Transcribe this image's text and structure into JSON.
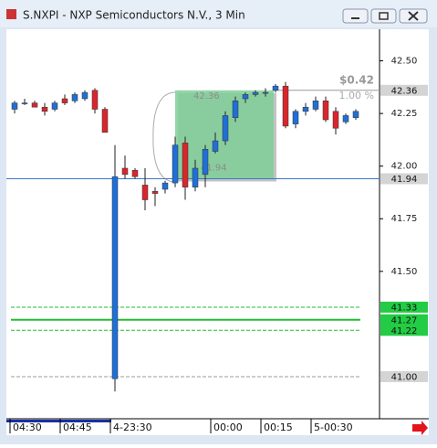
{
  "chart_data": {
    "type": "candlestick",
    "title": "S.NXPI - NXP Semiconductors N.V., 3 Min",
    "x": [
      "04:30",
      null,
      null,
      null,
      null,
      "04:45",
      null,
      null,
      null,
      null,
      "4-23:30",
      null,
      null,
      null,
      null,
      null,
      null,
      null,
      null,
      null,
      "00:00",
      null,
      null,
      null,
      null,
      "00:15",
      null,
      null,
      null,
      null,
      "5-00:30",
      null,
      null,
      null,
      null
    ],
    "open": [
      42.27,
      42.3,
      42.3,
      42.28,
      42.27,
      42.32,
      42.31,
      42.32,
      42.36,
      42.27,
      40.99,
      41.99,
      41.98,
      41.91,
      41.88,
      41.89,
      41.92,
      42.11,
      41.9,
      41.96,
      42.07,
      42.12,
      42.23,
      42.32,
      42.34,
      42.35,
      42.36,
      42.38,
      42.2,
      42.26,
      42.27,
      42.31,
      42.26,
      42.21,
      42.23
    ],
    "high": [
      42.31,
      42.32,
      42.31,
      42.3,
      42.31,
      42.34,
      42.35,
      42.36,
      42.37,
      42.28,
      42.1,
      42.05,
      41.99,
      41.99,
      41.9,
      41.93,
      42.14,
      42.14,
      42.03,
      42.1,
      42.16,
      42.26,
      42.33,
      42.35,
      42.36,
      42.37,
      42.39,
      42.4,
      42.27,
      42.3,
      42.33,
      42.33,
      42.28,
      42.25,
      42.27
    ],
    "low": [
      42.25,
      42.29,
      42.28,
      42.24,
      42.26,
      42.29,
      42.3,
      42.31,
      42.25,
      42.16,
      40.93,
      41.94,
      41.94,
      41.79,
      41.81,
      41.87,
      41.9,
      41.84,
      41.88,
      41.9,
      42.06,
      42.1,
      42.21,
      42.3,
      42.33,
      42.33,
      42.35,
      42.18,
      42.18,
      42.24,
      42.26,
      42.21,
      42.15,
      42.2,
      42.22
    ],
    "close": [
      42.3,
      42.3,
      42.28,
      42.26,
      42.3,
      42.3,
      42.34,
      42.35,
      42.27,
      42.16,
      41.95,
      41.96,
      41.95,
      41.84,
      41.87,
      41.92,
      42.1,
      41.9,
      41.99,
      42.08,
      42.12,
      42.24,
      42.31,
      42.34,
      42.35,
      42.35,
      42.38,
      42.19,
      42.26,
      42.28,
      42.31,
      42.22,
      42.18,
      42.24,
      42.26
    ],
    "up_color": "#1f6fd6",
    "down_color": "#d8262c",
    "ylim": [
      40.8,
      42.65
    ],
    "yticks": [
      {
        "value": 42.5,
        "label": "42.50"
      },
      42.25,
      {
        "value": 42.0,
        "label": "42.00"
      },
      41.75,
      {
        "value": 41.5,
        "label": "41.50"
      }
    ],
    "levels": [
      {
        "value": 42.36,
        "label": "42.36",
        "color": "#9a9a9a",
        "style": "solid",
        "box": "#d4d4d4"
      },
      {
        "value": 41.94,
        "label": "41.94",
        "color": "#3a78c8",
        "style": "solid",
        "box": "#d4d4d4"
      },
      {
        "value": 41.33,
        "label": "41.33",
        "color": "#22bb33",
        "style": "dashed",
        "box": "#22cc44"
      },
      {
        "value": 41.27,
        "label": "41.27",
        "color": "#22bb33",
        "style": "solid",
        "box": "#22cc44"
      },
      {
        "value": 41.22,
        "label": "41.22",
        "color": "#22bb33",
        "style": "dashed",
        "box": "#22cc44"
      },
      {
        "value": 41.0,
        "label": "41.00",
        "color": "#999999",
        "style": "dashed",
        "box": "#d4d4d4"
      }
    ],
    "measure": {
      "from": 41.94,
      "to": 42.36,
      "from_label": "41.94",
      "to_label": "42.36",
      "change_label": "$0.42",
      "pct_label": "1.00 %",
      "color": "#7fcf98"
    }
  }
}
